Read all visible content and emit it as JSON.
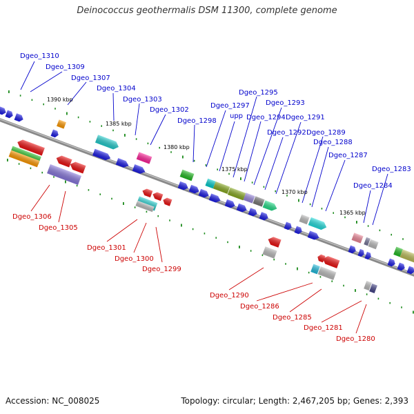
{
  "title": "Deinococcus geothermalis DSM 11300, complete genome",
  "footer": {
    "accession": "Accession: NC_008025",
    "topology": "Topology: circular; Length: 2,467,205 bp; Genes: 2,393"
  },
  "colors": {
    "backbone": "#8a8a8a",
    "tick": "#1a8a1a",
    "label_top": "#0000cc",
    "label_bottom": "#cc0000",
    "scale_text": "#000000"
  },
  "scale_labels": [
    "1390 kbp",
    "1385 kbp",
    "1380 kbp",
    "1375 kbp",
    "1370 kbp",
    "1365 kbp"
  ],
  "top_labels": [
    "Dgeo_1310",
    "Dgeo_1309",
    "Dgeo_1307",
    "Dgeo_1304",
    "Dgeo_1303",
    "Dgeo_1302",
    "Dgeo_1298",
    "Dgeo_1297",
    "upp",
    "Dgeo_1295",
    "Dgeo_1294",
    "Dgeo_1293",
    "Dgeo_1292",
    "Dgeo_1291",
    "Dgeo_1289",
    "Dgeo_1288",
    "Dgeo_1287",
    "Dgeo_1284",
    "Dgeo_1283"
  ],
  "bottom_labels": [
    "Dgeo_1306",
    "Dgeo_1305",
    "Dgeo_1301",
    "Dgeo_1300",
    "Dgeo_1299",
    "Dgeo_1290",
    "Dgeo_1286",
    "Dgeo_1285",
    "Dgeo_1281",
    "Dgeo_1280"
  ]
}
